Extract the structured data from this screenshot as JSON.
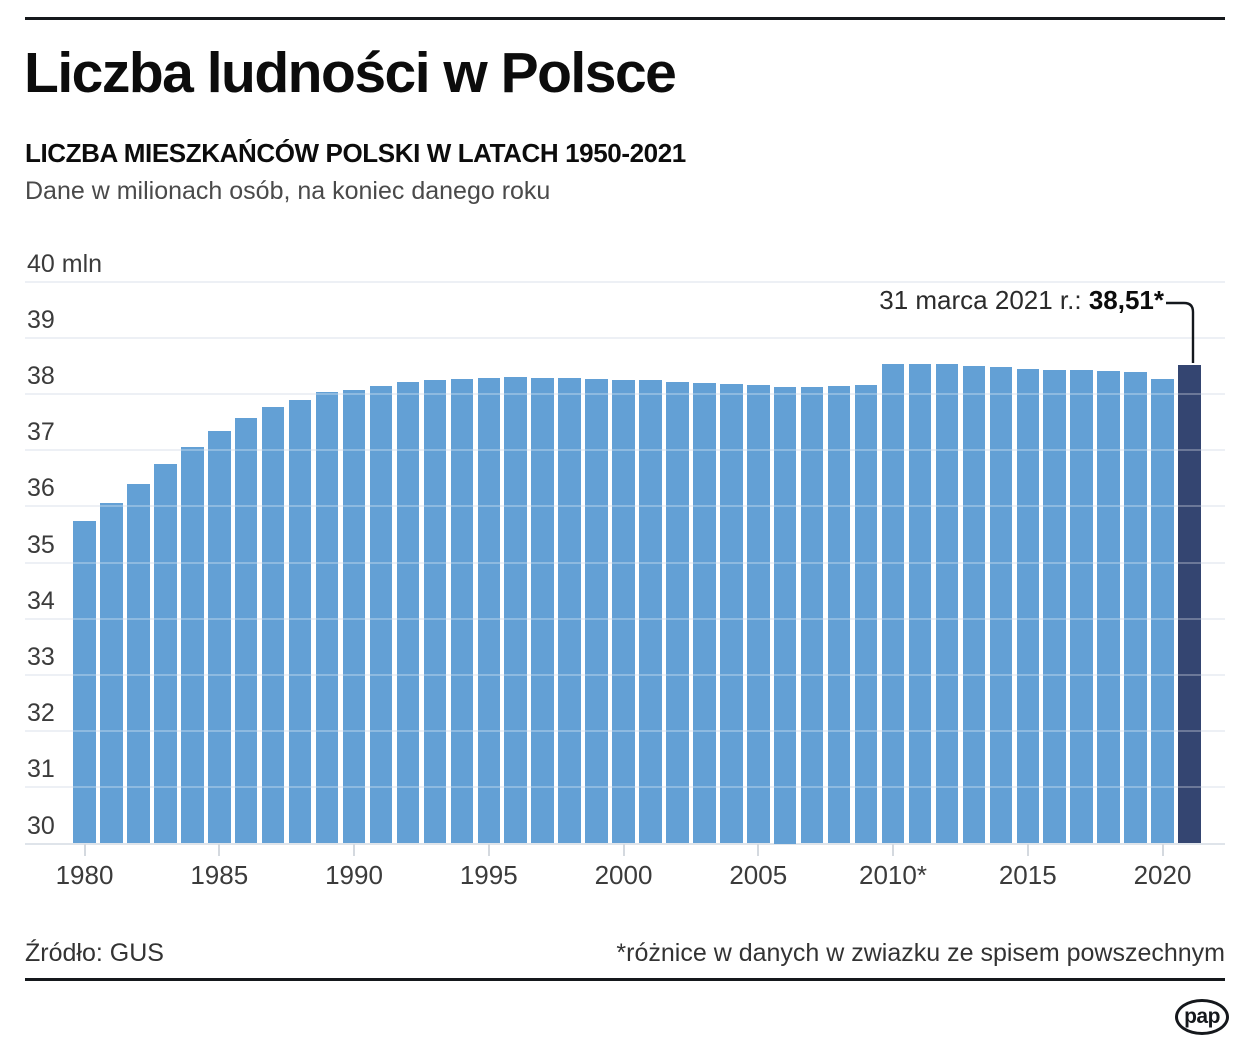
{
  "header": {
    "title": "Liczba ludności w Polsce",
    "subtitle": "LICZBA MIESZKAŃCÓW POLSKI W LATACH 1950-2021",
    "description": "Dane w milionach osób, na koniec danego roku"
  },
  "annotation": {
    "label": "31 marca 2021 r.: ",
    "value": "38,51*"
  },
  "footer": {
    "source": "Źródło: GUS",
    "footnote": "*różnice w danych w zwiazku ze spisem powszechnym",
    "logo_text": "pap"
  },
  "colors": {
    "bar": "#63a0d5",
    "bar_highlight": "#344571",
    "gridline": "#e7ebf1",
    "tick": "#d4d9df",
    "axis_text": "#3b3b3b",
    "rule": "#15181c"
  },
  "chart_data": {
    "type": "bar",
    "title": "Liczba mieszkańców Polski w latach 1950-2021",
    "unit": "mln osób",
    "ylabel": "",
    "xlabel": "",
    "ylim": [
      30,
      40
    ],
    "grid": true,
    "legend": "none",
    "y_tick_labels": [
      "40 mln",
      "39",
      "38",
      "37",
      "36",
      "35",
      "34",
      "33",
      "32",
      "31",
      "30"
    ],
    "x_ticks": [
      {
        "year": 1980,
        "label": "1980"
      },
      {
        "year": 1985,
        "label": "1985"
      },
      {
        "year": 1990,
        "label": "1990"
      },
      {
        "year": 1995,
        "label": "1995"
      },
      {
        "year": 2000,
        "label": "2000"
      },
      {
        "year": 2005,
        "label": "2005"
      },
      {
        "year": 2010,
        "label": "2010*"
      },
      {
        "year": 2015,
        "label": "2015"
      },
      {
        "year": 2020,
        "label": "2020"
      }
    ],
    "categories": [
      1980,
      1981,
      1982,
      1983,
      1984,
      1985,
      1986,
      1987,
      1988,
      1989,
      1990,
      1991,
      1992,
      1993,
      1994,
      1995,
      1996,
      1997,
      1998,
      1999,
      2000,
      2001,
      2002,
      2003,
      2004,
      2005,
      2006,
      2007,
      2008,
      2009,
      2010,
      2011,
      2012,
      2013,
      2014,
      2015,
      2016,
      2017,
      2018,
      2019,
      2020,
      2021
    ],
    "values": [
      35.735,
      36.062,
      36.399,
      36.745,
      37.063,
      37.341,
      37.572,
      37.764,
      37.885,
      38.04,
      38.073,
      38.144,
      38.203,
      38.239,
      38.265,
      38.284,
      38.294,
      38.29,
      38.277,
      38.263,
      38.254,
      38.242,
      38.219,
      38.191,
      38.174,
      38.157,
      38.125,
      38.116,
      38.136,
      38.167,
      38.53,
      38.538,
      38.533,
      38.496,
      38.479,
      38.437,
      38.433,
      38.434,
      38.411,
      38.383,
      38.265,
      38.51
    ],
    "highlight_index": 41,
    "highlight_note": "31 marca 2021 r.: 38,51*"
  }
}
